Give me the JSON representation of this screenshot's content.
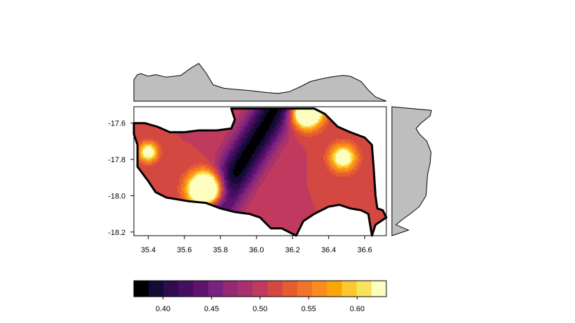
{
  "chart_data": {
    "type": "heatmap",
    "title": "",
    "xlabel": "",
    "ylabel": "",
    "xlim": [
      35.32,
      36.72
    ],
    "ylim": [
      -18.22,
      -17.51
    ],
    "x_ticks": [
      35.4,
      35.6,
      35.8,
      36.0,
      36.2,
      36.4,
      36.6
    ],
    "x_tick_labels": [
      "35.4",
      "35.6",
      "35.8",
      "36.0",
      "36.2",
      "36.4",
      "36.6"
    ],
    "y_ticks": [
      -17.6,
      -17.8,
      -18.0,
      -18.2
    ],
    "y_tick_labels": [
      "-17.6",
      "-17.8",
      "-18.0",
      "-18.2"
    ],
    "boundary": [
      [
        35.32,
        -17.6
      ],
      [
        35.38,
        -17.6
      ],
      [
        35.45,
        -17.62
      ],
      [
        35.52,
        -17.65
      ],
      [
        35.6,
        -17.65
      ],
      [
        35.68,
        -17.64
      ],
      [
        35.78,
        -17.64
      ],
      [
        35.86,
        -17.63
      ],
      [
        35.88,
        -17.58
      ],
      [
        35.86,
        -17.52
      ],
      [
        35.96,
        -17.52
      ],
      [
        36.1,
        -17.52
      ],
      [
        36.24,
        -17.52
      ],
      [
        36.32,
        -17.52
      ],
      [
        36.38,
        -17.55
      ],
      [
        36.45,
        -17.62
      ],
      [
        36.52,
        -17.65
      ],
      [
        36.6,
        -17.68
      ],
      [
        36.64,
        -17.72
      ],
      [
        36.65,
        -17.85
      ],
      [
        36.66,
        -18.0
      ],
      [
        36.67,
        -18.07
      ],
      [
        36.7,
        -18.08
      ],
      [
        36.72,
        -18.12
      ],
      [
        36.66,
        -18.16
      ],
      [
        36.64,
        -18.22
      ],
      [
        36.62,
        -18.1
      ],
      [
        36.58,
        -18.08
      ],
      [
        36.52,
        -18.07
      ],
      [
        36.46,
        -18.05
      ],
      [
        36.4,
        -18.06
      ],
      [
        36.32,
        -18.1
      ],
      [
        36.26,
        -18.14
      ],
      [
        36.22,
        -18.22
      ],
      [
        36.14,
        -18.18
      ],
      [
        36.08,
        -18.18
      ],
      [
        36.02,
        -18.12
      ],
      [
        35.96,
        -18.1
      ],
      [
        35.88,
        -18.09
      ],
      [
        35.8,
        -18.07
      ],
      [
        35.72,
        -18.04
      ],
      [
        35.62,
        -18.03
      ],
      [
        35.5,
        -18.01
      ],
      [
        35.44,
        -17.98
      ],
      [
        35.4,
        -17.92
      ],
      [
        35.34,
        -17.84
      ],
      [
        35.34,
        -17.72
      ],
      [
        35.32,
        -17.66
      ]
    ],
    "field": {
      "base": 0.375,
      "valley": {
        "slope": 1.6,
        "intercept": -17.69,
        "amplitude": 0.085,
        "width": 0.2
      },
      "hotspots": [
        {
          "x": 35.72,
          "y": -17.97,
          "amplitude": 0.23,
          "sigma": 0.09
        },
        {
          "x": 36.28,
          "y": -17.54,
          "amplitude": 0.18,
          "sigma": 0.08
        },
        {
          "x": 36.48,
          "y": -17.79,
          "amplitude": 0.1,
          "sigma": 0.07
        },
        {
          "x": 35.4,
          "y": -17.76,
          "amplitude": 0.1,
          "sigma": 0.05
        }
      ]
    },
    "legend": {
      "breaks": [
        0.37,
        0.38,
        0.39,
        0.4,
        0.41,
        0.42,
        0.43,
        0.44,
        0.45,
        0.46,
        0.47,
        0.48,
        0.49,
        0.5,
        0.51,
        0.52,
        0.53,
        0.54,
        0.55,
        0.56,
        0.57,
        0.58,
        0.59,
        0.6,
        0.61,
        0.62,
        0.63
      ],
      "colors": [
        "#000004",
        "#140b36",
        "#2e0c4e",
        "#470f62",
        "#60136e",
        "#782281",
        "#922b73",
        "#a8326b",
        "#c03a5f",
        "#d44842",
        "#e55c30",
        "#f0742c",
        "#f88c1e",
        "#fca50a",
        "#fcc830",
        "#f8e35c",
        "#fcfdbf"
      ],
      "ticks": [
        0.4,
        0.45,
        0.5,
        0.55,
        0.6
      ],
      "tick_labels": [
        "0.40",
        "0.45",
        "0.50",
        "0.55",
        "0.60"
      ]
    },
    "marginals": {
      "top": {
        "x": [
          35.32,
          35.34,
          35.36,
          35.4,
          35.44,
          35.5,
          35.58,
          35.64,
          35.68,
          35.72,
          35.76,
          35.82,
          35.9,
          35.98,
          36.06,
          36.12,
          36.18,
          36.24,
          36.3,
          36.36,
          36.42,
          36.48,
          36.52,
          36.58,
          36.62,
          36.66,
          36.72
        ],
        "density": [
          0.5,
          0.62,
          0.64,
          0.58,
          0.62,
          0.56,
          0.6,
          0.78,
          0.88,
          0.66,
          0.38,
          0.3,
          0.27,
          0.24,
          0.2,
          0.18,
          0.22,
          0.33,
          0.46,
          0.52,
          0.57,
          0.6,
          0.58,
          0.46,
          0.26,
          0.1,
          0.0
        ]
      },
      "right": {
        "y": [
          -17.51,
          -17.53,
          -17.56,
          -17.6,
          -17.63,
          -17.66,
          -17.7,
          -17.76,
          -17.82,
          -17.88,
          -17.94,
          -18.0,
          -18.06,
          -18.1,
          -18.13,
          -18.16,
          -18.19,
          -18.22
        ],
        "density": [
          0.0,
          0.95,
          0.92,
          0.7,
          0.58,
          0.66,
          0.84,
          0.94,
          0.92,
          0.86,
          0.84,
          0.82,
          0.66,
          0.44,
          0.26,
          0.1,
          0.4,
          0.0
        ]
      }
    }
  }
}
